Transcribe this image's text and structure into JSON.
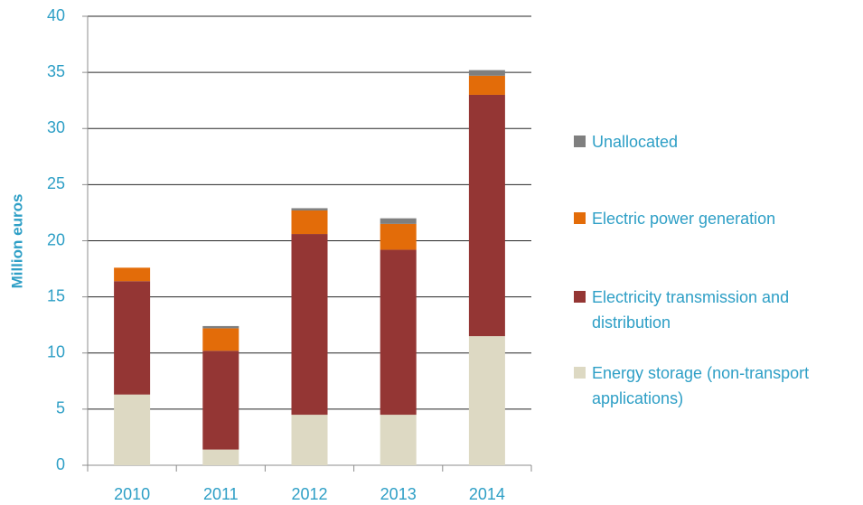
{
  "chart_data": {
    "type": "stacked-bar",
    "y_label": "Million euros",
    "categories": [
      "2010",
      "2011",
      "2012",
      "2013",
      "2014"
    ],
    "series": [
      {
        "name": "Energy storage (non-transport applications)",
        "color": "#ddd9c3",
        "values": [
          6.3,
          1.4,
          4.5,
          4.5,
          11.5
        ]
      },
      {
        "name": "Electricity transmission and distribution",
        "color": "#943634",
        "values": [
          10.1,
          8.8,
          16.1,
          14.7,
          21.5
        ]
      },
      {
        "name": "Electric power generation",
        "color": "#e36c09",
        "values": [
          1.2,
          2.0,
          2.1,
          2.3,
          1.7
        ]
      },
      {
        "name": "Unallocated",
        "color": "#7f7f7f",
        "values": [
          0,
          0.2,
          0.2,
          0.5,
          0.5
        ]
      }
    ],
    "ylim": [
      0,
      40
    ],
    "yticks": [
      0,
      5,
      10,
      15,
      20,
      25,
      30,
      35,
      40
    ],
    "grid": true
  }
}
